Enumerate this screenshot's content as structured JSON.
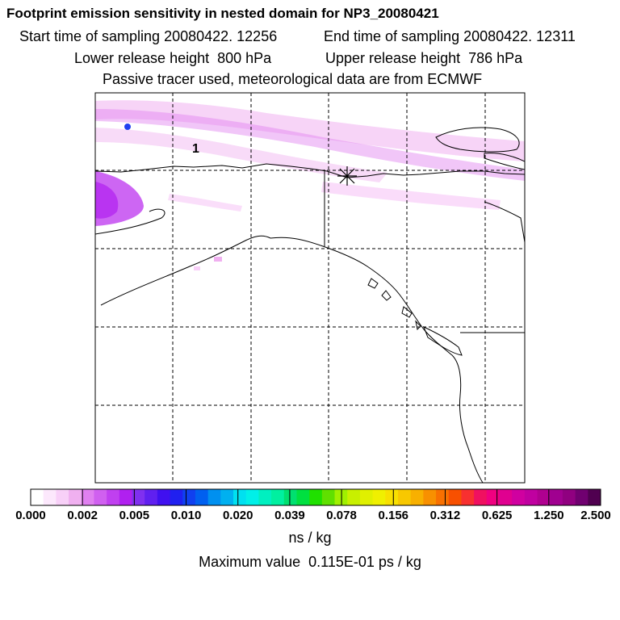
{
  "title": "Footprint emission sensitivity in nested domain for NP3_20080421",
  "start_time": "Start time of sampling 20080422. 12256",
  "end_time": "End time of sampling 20080422. 12311",
  "lower_release": "Lower release height  800 hPa",
  "upper_release": "Upper release height  786 hPa",
  "tracer_note": "Passive tracer used, meteorological data are from ECMWF",
  "marker_label": "1",
  "colorbar": {
    "tick_labels": [
      "0.000",
      "0.002",
      "0.005",
      "0.010",
      "0.020",
      "0.039",
      "0.078",
      "0.156",
      "0.312",
      "0.625",
      "1.250",
      "2.500"
    ],
    "colors": [
      "#ffffff",
      "#fce8fc",
      "#f8d0f8",
      "#f0b0f0",
      "#e080f0",
      "#d060f0",
      "#c040f0",
      "#b020f0",
      "#8030f0",
      "#6020f0",
      "#4010f0",
      "#2020f0",
      "#1040f0",
      "#0060f0",
      "#0090f0",
      "#00b0f0",
      "#00e0f0",
      "#00f0e8",
      "#00f0c0",
      "#00f0a0",
      "#00e070",
      "#00e040",
      "#20e000",
      "#60e000",
      "#a0f000",
      "#c8f000",
      "#e0f000",
      "#f0f000",
      "#f8e000",
      "#f8c800",
      "#f8b000",
      "#f89000",
      "#f87000",
      "#f85000",
      "#f83030",
      "#f01060",
      "#f00080",
      "#e00090",
      "#d000a0",
      "#c000a0",
      "#b00090",
      "#a00090",
      "#900080",
      "#700070",
      "#500050"
    ],
    "unit": "ns / kg",
    "max_value": "Maximum value  0.115E-01 ps / kg"
  }
}
